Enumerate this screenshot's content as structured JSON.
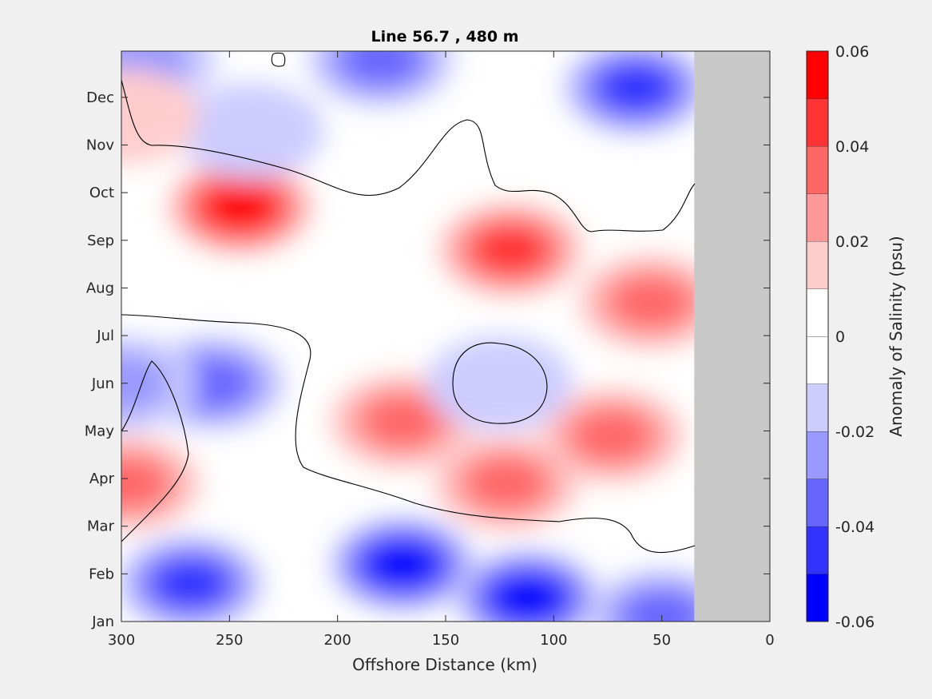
{
  "chart_data": {
    "type": "heatmap",
    "title": "Line 56.7 , 480 m",
    "xlabel": "Offshore Distance (km)",
    "ylabel": "",
    "x_axis": {
      "range": [
        300,
        0
      ],
      "ticks": [
        300,
        250,
        200,
        150,
        100,
        50,
        0
      ],
      "tick_labels": [
        "300",
        "250",
        "200",
        "150",
        "100",
        "50",
        "0"
      ]
    },
    "y_axis": {
      "categories": [
        "Jan",
        "Feb",
        "Mar",
        "Apr",
        "May",
        "Jun",
        "Jul",
        "Aug",
        "Sep",
        "Oct",
        "Nov",
        "Dec"
      ]
    },
    "colorbar": {
      "label": "Anomaly of Salinity (psu)",
      "range": [
        -0.06,
        0.06
      ],
      "ticks": [
        0.06,
        0.04,
        0.02,
        0,
        -0.02,
        -0.04,
        -0.06
      ],
      "tick_labels": [
        "0.06",
        "0.04",
        "0.02",
        "0",
        "-0.02",
        "-0.04",
        "-0.06"
      ],
      "levels": [
        {
          "min": -0.06,
          "max": -0.05,
          "color": "#0000ff"
        },
        {
          "min": -0.05,
          "max": -0.04,
          "color": "#3333ff"
        },
        {
          "min": -0.04,
          "max": -0.03,
          "color": "#6666ff"
        },
        {
          "min": -0.03,
          "max": -0.02,
          "color": "#9999ff"
        },
        {
          "min": -0.02,
          "max": -0.01,
          "color": "#ccccff"
        },
        {
          "min": -0.01,
          "max": 0.0,
          "color": "#ffffff"
        },
        {
          "min": 0.0,
          "max": 0.01,
          "color": "#ffffff"
        },
        {
          "min": 0.01,
          "max": 0.02,
          "color": "#ffcccc"
        },
        {
          "min": 0.02,
          "max": 0.03,
          "color": "#ff9999"
        },
        {
          "min": 0.03,
          "max": 0.04,
          "color": "#ff6666"
        },
        {
          "min": 0.04,
          "max": 0.05,
          "color": "#ff3333"
        },
        {
          "min": 0.05,
          "max": 0.06,
          "color": "#ff0000"
        }
      ]
    },
    "no_data_region": {
      "x_range": [
        35,
        0
      ],
      "color": "#c8c8c8"
    },
    "zero_contour": true,
    "features": [
      {
        "x": 245,
        "month": 8.7,
        "value": 0.058
      },
      {
        "x": 120,
        "month": 7.8,
        "value": 0.042
      },
      {
        "x": 55,
        "month": 6.7,
        "value": 0.038
      },
      {
        "x": 170,
        "month": 4.2,
        "value": 0.036
      },
      {
        "x": 122,
        "month": 2.9,
        "value": 0.034
      },
      {
        "x": 73,
        "month": 3.9,
        "value": 0.032
      },
      {
        "x": 297,
        "month": 2.9,
        "value": 0.038
      },
      {
        "x": 125,
        "month": 5.0,
        "value": -0.012
      },
      {
        "x": 258,
        "month": 5.0,
        "value": -0.035
      },
      {
        "x": 299,
        "month": 5.0,
        "value": -0.025
      },
      {
        "x": 170,
        "month": 1.2,
        "value": -0.056
      },
      {
        "x": 112,
        "month": 0.5,
        "value": -0.052
      },
      {
        "x": 268,
        "month": 0.8,
        "value": -0.042
      },
      {
        "x": 50,
        "month": 0.1,
        "value": -0.038
      },
      {
        "x": 62,
        "month": 11.2,
        "value": -0.048
      },
      {
        "x": 240,
        "month": 10.3,
        "value": -0.015
      },
      {
        "x": 180,
        "month": 11.8,
        "value": -0.035
      },
      {
        "x": 290,
        "month": 11.8,
        "value": -0.022
      },
      {
        "x": 298,
        "month": 10.6,
        "value": 0.013
      }
    ]
  }
}
